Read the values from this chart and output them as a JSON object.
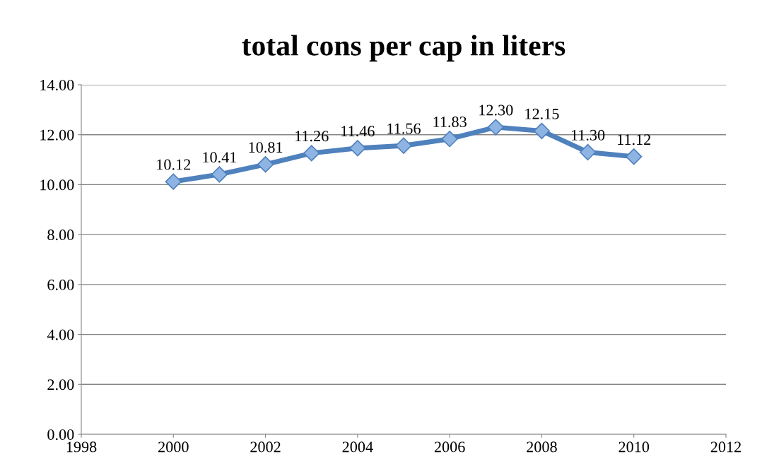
{
  "chart_data": {
    "type": "line",
    "title": "total cons per cap in liters",
    "x": [
      2000,
      2001,
      2002,
      2003,
      2004,
      2005,
      2006,
      2007,
      2008,
      2009,
      2010
    ],
    "series": [
      {
        "color": "#4f81bd",
        "values": [
          10.12,
          10.41,
          10.81,
          11.26,
          11.46,
          11.56,
          11.83,
          12.3,
          12.15,
          11.3,
          11.12
        ],
        "value_labels": [
          "10.12",
          "10.41",
          "10.81",
          "11.26",
          "11.46",
          "11.56",
          "11.83",
          "12.30",
          "12.15",
          "11.30",
          "11.12"
        ]
      }
    ],
    "xlim": [
      1998,
      2012
    ],
    "xticks": [
      1998,
      2000,
      2002,
      2004,
      2006,
      2008,
      2010,
      2012
    ],
    "ylim": [
      0,
      14
    ],
    "yticks": [
      {
        "value": 0,
        "label": "0.00"
      },
      {
        "value": 2,
        "label": "2.00"
      },
      {
        "value": 4,
        "label": "4.00"
      },
      {
        "value": 6,
        "label": "6.00"
      },
      {
        "value": 8,
        "label": "8.00"
      },
      {
        "value": 10,
        "label": "10.00"
      },
      {
        "value": 12,
        "label": "12.00"
      },
      {
        "value": 14,
        "label": "14.00"
      }
    ],
    "grid": "y",
    "marker": "diamond",
    "line_style": "solid"
  }
}
